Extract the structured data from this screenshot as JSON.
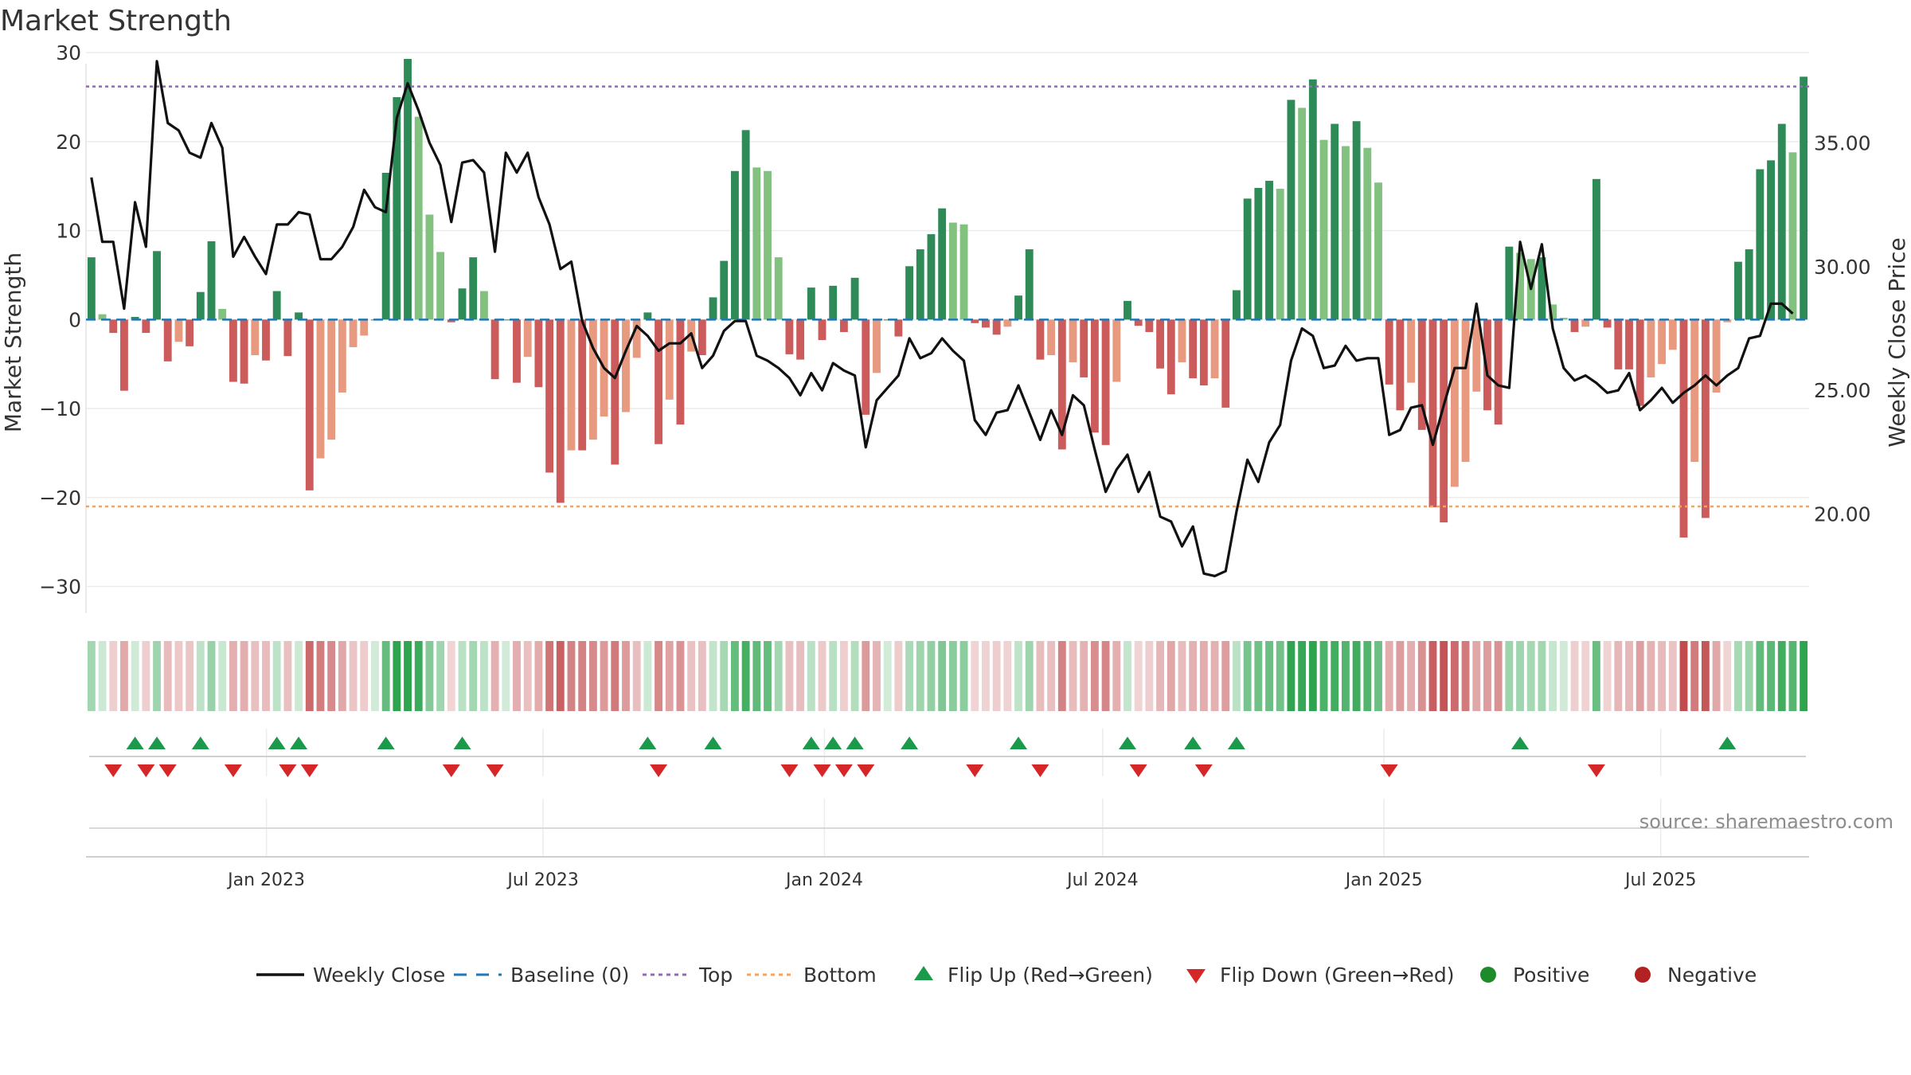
{
  "chart_data": {
    "type": "bar",
    "title": "Market Strength",
    "source": "source: sharemaestro.com",
    "ylabel_left": "Market Strength",
    "ylabel_right": "Weekly Close Price",
    "ylim_left": [
      -33,
      31
    ],
    "yticks_left": [
      30,
      20,
      10,
      0,
      -10,
      -20,
      -30
    ],
    "ylim_right": [
      16,
      39
    ],
    "yticks_right": [
      35,
      30,
      25,
      20
    ],
    "x_start": "2022-09-05",
    "x_end": "2025-10-06",
    "xticks": [
      {
        "label": "Jan 2023",
        "date": "2023-01-01"
      },
      {
        "label": "Jul 2023",
        "date": "2023-07-01"
      },
      {
        "label": "Jan 2024",
        "date": "2024-01-01"
      },
      {
        "label": "Jul 2024",
        "date": "2024-07-01"
      },
      {
        "label": "Jan 2025",
        "date": "2025-01-01"
      },
      {
        "label": "Jul 2025",
        "date": "2025-07-01"
      }
    ],
    "top_line": 26.2,
    "bottom_line": -21,
    "strength": [
      7,
      0.6,
      -1.5,
      -8,
      0.3,
      -1.5,
      7.7,
      -4.7,
      -2.5,
      -3,
      3.1,
      8.8,
      1.2,
      -7,
      -7.2,
      -4,
      -4.6,
      3.2,
      -4.1,
      0.8,
      -19.2,
      -15.6,
      -13.5,
      -8.2,
      -3.1,
      -1.8,
      0,
      16.5,
      25,
      29.3,
      22.8,
      11.8,
      7.6,
      -0.3,
      3.5,
      7,
      3.2,
      -6.7,
      0,
      -7.1,
      -4.2,
      -7.6,
      -17.2,
      -20.6,
      -14.7,
      -14.7,
      -13.5,
      -10.9,
      -16.3,
      -10.4,
      -4.3,
      0.8,
      -14,
      -9,
      -11.8,
      -3.6,
      -4,
      2.5,
      6.6,
      16.7,
      21.3,
      17.1,
      16.7,
      7,
      -3.9,
      -4.5,
      3.6,
      -2.3,
      3.8,
      -1.4,
      4.7,
      -10.7,
      -6,
      0,
      -1.9,
      6,
      7.9,
      9.6,
      12.5,
      10.9,
      10.7,
      -0.4,
      -0.9,
      -1.7,
      -0.8,
      2.7,
      7.9,
      -4.5,
      -4,
      -14.6,
      -4.8,
      -6.5,
      -12.7,
      -14.1,
      -7,
      2.1,
      -0.7,
      -1.4,
      -5.5,
      -8.4,
      -4.8,
      -6.6,
      -7.4,
      -6.6,
      -9.9,
      3.3,
      13.6,
      14.8,
      15.6,
      14.7,
      24.7,
      23.8,
      27,
      20.2,
      22,
      19.5,
      22.3,
      19.3,
      15.4,
      -7.3,
      -10.2,
      -7.1,
      -12.4,
      -21.1,
      -22.8,
      -18.8,
      -16,
      -8.1,
      -10.2,
      -11.8,
      8.2,
      7.5,
      6.8,
      7,
      1.7,
      0.2,
      -1.4,
      -0.8,
      15.8,
      -0.9,
      -5.6,
      -5.6,
      -9.7,
      -6.5,
      -5,
      -3.4,
      -24.5,
      -16,
      -22.3,
      -8.2,
      -0.3,
      6.5,
      7.9,
      16.9,
      17.9,
      22,
      18.8,
      27.3
    ],
    "weekly_close": [
      33.6,
      31,
      31,
      28.3,
      32.6,
      30.8,
      38.3,
      35.8,
      35.5,
      34.6,
      34.4,
      35.8,
      34.8,
      30.4,
      31.2,
      30.4,
      29.7,
      31.7,
      31.7,
      32.2,
      32.1,
      30.3,
      30.3,
      30.8,
      31.6,
      33.1,
      32.4,
      32.2,
      36,
      37.4,
      36.3,
      35,
      34.1,
      31.8,
      34.2,
      34.3,
      33.8,
      30.6,
      34.6,
      33.8,
      34.6,
      32.8,
      31.7,
      29.9,
      30.2,
      27.8,
      26.7,
      25.9,
      25.5,
      26.6,
      27.6,
      27.2,
      26.6,
      26.9,
      26.9,
      27.3,
      25.9,
      26.4,
      27.4,
      27.8,
      27.8,
      26.4,
      26.2,
      25.9,
      25.5,
      24.8,
      25.7,
      25,
      26.1,
      25.8,
      25.6,
      22.7,
      24.6,
      25.1,
      25.6,
      27.1,
      26.3,
      26.5,
      27.1,
      26.6,
      26.2,
      23.8,
      23.2,
      24.1,
      24.2,
      25.2,
      24.1,
      23,
      24.2,
      23.2,
      24.8,
      24.4,
      22.6,
      20.9,
      21.8,
      22.4,
      20.9,
      21.7,
      19.9,
      19.7,
      18.7,
      19.5,
      17.6,
      17.5,
      17.7,
      20.1,
      22.2,
      21.3,
      22.9,
      23.6,
      26.2,
      27.5,
      27.2,
      25.9,
      26,
      26.8,
      26.2,
      26.3,
      26.3,
      23.2,
      23.4,
      24.3,
      24.4,
      22.8,
      24.4,
      25.9,
      25.9,
      28.5,
      25.6,
      25.2,
      25.1,
      31,
      29.1,
      30.9,
      27.5,
      25.9,
      25.4,
      25.6,
      25.3,
      24.9,
      25,
      25.7,
      24.2,
      24.6,
      25.1,
      24.5,
      24.9,
      25.2,
      25.6,
      25.2,
      25.6,
      25.9,
      27.1,
      27.2,
      28.5,
      28.5,
      28.1
    ],
    "bar_colors": {
      "green_dark": "#2e8b57",
      "green_light": "#82c17f",
      "red_dark": "#cc5c5c",
      "red_light": "#e89a80"
    },
    "line_color": "#111111",
    "top_color": "#9467bd",
    "bottom_color": "#f4a460",
    "flip_up_weeks": [
      4,
      6,
      10,
      17,
      19,
      27,
      34,
      51,
      57,
      66,
      68,
      70,
      75,
      85,
      95,
      101,
      105,
      131,
      150
    ],
    "flip_down_weeks": [
      2,
      5,
      7,
      13,
      18,
      20,
      33,
      37,
      52,
      64,
      67,
      69,
      71,
      81,
      87,
      96,
      102,
      119,
      138
    ],
    "flip_up_color": "#1a9a4a",
    "flip_down_color": "#d62728",
    "legend": [
      {
        "label": "Weekly Close",
        "kind": "solid-line",
        "color": "#111111"
      },
      {
        "label": "Baseline (0)",
        "kind": "dash-line",
        "color": "#1f77b4"
      },
      {
        "label": "Top",
        "kind": "dot-line",
        "color": "#9467bd"
      },
      {
        "label": "Bottom",
        "kind": "dot-line",
        "color": "#f4a460"
      },
      {
        "label": "Flip Up (Red→Green)",
        "kind": "triangle-up",
        "color": "#1a9a4a"
      },
      {
        "label": "Flip Down (Green→Red)",
        "kind": "triangle-down",
        "color": "#d62728"
      },
      {
        "label": "Positive",
        "kind": "circle",
        "color": "#1e8b2a"
      },
      {
        "label": "Negative",
        "kind": "circle",
        "color": "#b22222"
      }
    ]
  }
}
